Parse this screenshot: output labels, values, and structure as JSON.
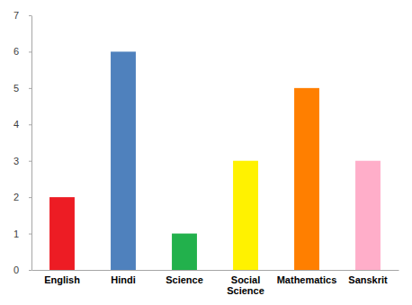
{
  "chart_data": {
    "type": "bar",
    "categories": [
      "English",
      "Hindi",
      "Science",
      "Social Science",
      "Mathematics",
      "Sanskrit"
    ],
    "values": [
      2,
      6,
      1,
      3,
      5,
      3
    ],
    "colors": [
      "#ed1c24",
      "#4f81bd",
      "#22b14c",
      "#fff200",
      "#ff7f00",
      "#ffaec9"
    ],
    "ylim": [
      0,
      7
    ],
    "yticks": [
      0,
      1,
      2,
      3,
      4,
      5,
      6,
      7
    ],
    "grid": false
  }
}
